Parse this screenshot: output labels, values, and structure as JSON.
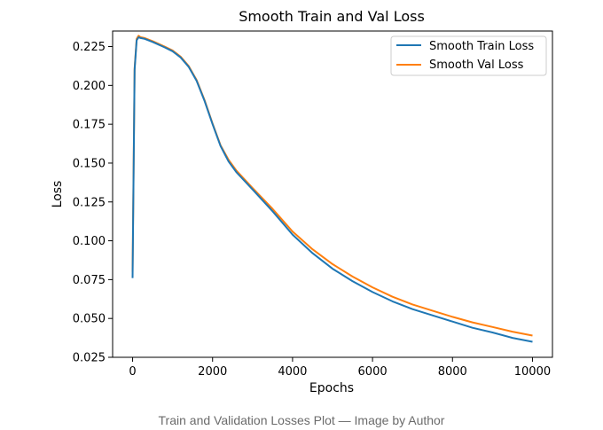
{
  "figure": {
    "caption": "Train and Validation Losses Plot — Image by Author"
  },
  "chart_data": {
    "type": "line",
    "title": "Smooth Train and Val Loss",
    "xlabel": "Epochs",
    "ylabel": "Loss",
    "xlim": [
      -500,
      10500
    ],
    "ylim": [
      0.025,
      0.235
    ],
    "xticks": [
      0,
      2000,
      4000,
      6000,
      8000,
      10000
    ],
    "xtick_labels": [
      "0",
      "2000",
      "4000",
      "6000",
      "8000",
      "10000"
    ],
    "yticks": [
      0.025,
      0.05,
      0.075,
      0.1,
      0.125,
      0.15,
      0.175,
      0.2,
      0.225
    ],
    "ytick_labels": [
      "0.025",
      "0.050",
      "0.075",
      "0.100",
      "0.125",
      "0.150",
      "0.175",
      "0.200",
      "0.225"
    ],
    "grid": false,
    "legend_position": "top-right",
    "series": [
      {
        "name": "Smooth Train Loss",
        "color": "#1f77b4",
        "x": [
          0,
          50,
          100,
          150,
          200,
          300,
          500,
          800,
          1000,
          1200,
          1400,
          1600,
          1800,
          2000,
          2200,
          2400,
          2600,
          3000,
          3500,
          4000,
          4500,
          5000,
          5500,
          6000,
          6500,
          7000,
          7500,
          8000,
          8500,
          9000,
          9500,
          10000
        ],
        "y": [
          0.076,
          0.21,
          0.229,
          0.231,
          0.2305,
          0.23,
          0.228,
          0.2245,
          0.222,
          0.218,
          0.212,
          0.203,
          0.19,
          0.175,
          0.161,
          0.151,
          0.144,
          0.133,
          0.119,
          0.104,
          0.092,
          0.082,
          0.074,
          0.067,
          0.061,
          0.056,
          0.052,
          0.048,
          0.044,
          0.041,
          0.0375,
          0.035
        ]
      },
      {
        "name": "Smooth Val Loss",
        "color": "#ff7f0e",
        "x": [
          0,
          50,
          100,
          150,
          200,
          300,
          500,
          800,
          1000,
          1200,
          1400,
          1600,
          1800,
          2000,
          2200,
          2400,
          2600,
          3000,
          3500,
          4000,
          4500,
          5000,
          5500,
          6000,
          6500,
          7000,
          7500,
          8000,
          8500,
          9000,
          9500,
          10000
        ],
        "y": [
          0.08,
          0.211,
          0.23,
          0.232,
          0.231,
          0.2305,
          0.2285,
          0.225,
          0.2225,
          0.2185,
          0.2125,
          0.2035,
          0.1905,
          0.1755,
          0.1615,
          0.152,
          0.145,
          0.134,
          0.1205,
          0.106,
          0.0945,
          0.085,
          0.077,
          0.07,
          0.064,
          0.059,
          0.055,
          0.051,
          0.0475,
          0.0445,
          0.0415,
          0.039
        ]
      }
    ]
  }
}
